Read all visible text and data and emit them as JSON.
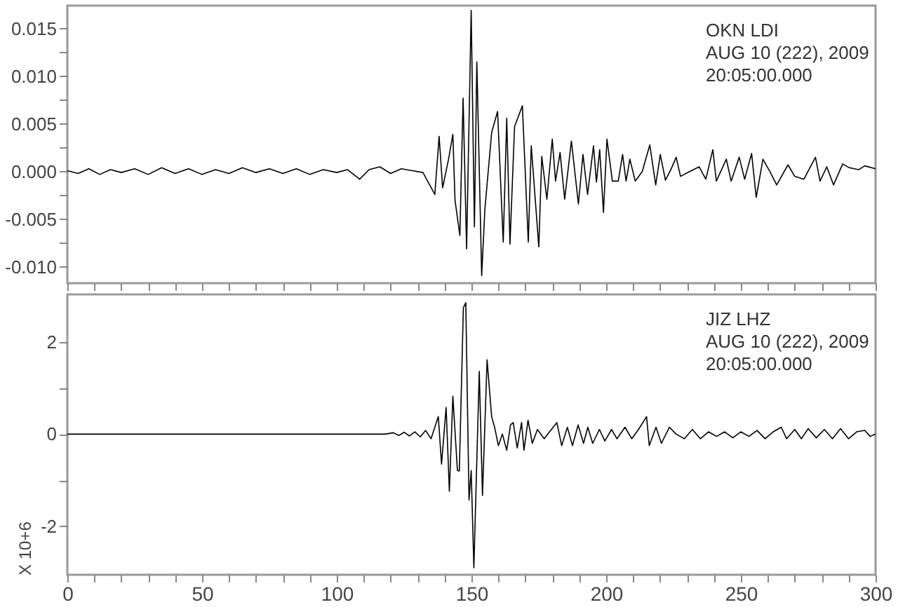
{
  "chart_data": [
    {
      "type": "line",
      "tick_labels": "y",
      "grid": false,
      "legend": false,
      "line_style": "solid",
      "marker": "none",
      "annotations": [
        "OKN LDI",
        "AUG 10 (222), 2009",
        "20:05:00.000"
      ],
      "xlim": [
        0,
        300
      ],
      "xticks": [
        0,
        {
          "value": 10,
          "label": null
        },
        {
          "value": 20,
          "label": null
        },
        {
          "value": 30,
          "label": null
        },
        {
          "value": 40,
          "label": null
        },
        50,
        {
          "value": 60,
          "label": null
        },
        {
          "value": 70,
          "label": null
        },
        {
          "value": 80,
          "label": null
        },
        {
          "value": 90,
          "label": null
        },
        100,
        {
          "value": 110,
          "label": null
        },
        {
          "value": 120,
          "label": null
        },
        {
          "value": 130,
          "label": null
        },
        {
          "value": 140,
          "label": null
        },
        150,
        {
          "value": 160,
          "label": null
        },
        {
          "value": 170,
          "label": null
        },
        {
          "value": 180,
          "label": null
        },
        {
          "value": 190,
          "label": null
        },
        200,
        {
          "value": 210,
          "label": null
        },
        {
          "value": 220,
          "label": null
        },
        {
          "value": 230,
          "label": null
        },
        {
          "value": 240,
          "label": null
        },
        250,
        {
          "value": 260,
          "label": null
        },
        {
          "value": 270,
          "label": null
        },
        {
          "value": 280,
          "label": null
        },
        {
          "value": 290,
          "label": null
        },
        300
      ],
      "ylim": [
        -0.0117,
        0.0174
      ],
      "yticks": [
        {
          "value": -0.01,
          "label": "-0.010"
        },
        {
          "value": -0.0075,
          "label": null
        },
        {
          "value": -0.005,
          "label": "-0.005"
        },
        {
          "value": -0.0025,
          "label": null
        },
        {
          "value": 0,
          "label": "0.000"
        },
        {
          "value": 0.0025,
          "label": null
        },
        {
          "value": 0.005,
          "label": "0.005"
        },
        {
          "value": 0.0075,
          "label": null
        },
        {
          "value": 0.01,
          "label": "0.010"
        },
        {
          "value": 0.0125,
          "label": null
        },
        {
          "value": 0.015,
          "label": "0.015"
        }
      ],
      "x": [
        0,
        4,
        8,
        12,
        16,
        20,
        25,
        30,
        35,
        40,
        45,
        50,
        55,
        60,
        65,
        70,
        75,
        80,
        85,
        90,
        95,
        100,
        104,
        108.5,
        112,
        116,
        120,
        124,
        128,
        132,
        136.4,
        138,
        139.3,
        141.5,
        143.1,
        143.9,
        145.7,
        146.9,
        148.2,
        149.9,
        151.1,
        152,
        153.8,
        155,
        157.5,
        159.7,
        161.8,
        163.1,
        164.3,
        166,
        168.9,
        171.1,
        172.2,
        175,
        176.1,
        178,
        180,
        181.2,
        182.9,
        184.6,
        187.1,
        189.7,
        191.4,
        193.1,
        195.3,
        196.4,
        197.6,
        199,
        200.3,
        202.3,
        204.5,
        206.1,
        207.4,
        208.8,
        210.8,
        213.4,
        216.2,
        218.4,
        220.1,
        222,
        224,
        226,
        227.6,
        231,
        234.5,
        237,
        239.6,
        240.9,
        244.6,
        246.4,
        249.4,
        251.4,
        254,
        255.7,
        258.2,
        260.8,
        263.3,
        267.5,
        270,
        273.4,
        277.7,
        279.4,
        281.9,
        284.4,
        287.8,
        290.3,
        293.7,
        296,
        300
      ],
      "series": [
        {
          "color": "#000000",
          "values": [
            0.0001,
            -0.0002,
            0.0003,
            -0.0003,
            0.0002,
            -0.0001,
            0.0003,
            -0.0003,
            0.0004,
            -0.0002,
            0.0003,
            -0.0003,
            0.0002,
            -0.0002,
            0.0004,
            -0.0001,
            0.0003,
            -0.0002,
            0.0003,
            -0.0003,
            0.0002,
            -0.0001,
            0.0002,
            -0.0008,
            0.0002,
            0.0005,
            -0.0002,
            0.0003,
            0.0001,
            -0.0001,
            -0.0024,
            0.0037,
            -0.0017,
            0.0013,
            0.0039,
            -0.003,
            -0.0067,
            0.0077,
            -0.0081,
            0.0169,
            -0.0058,
            0.0115,
            -0.0109,
            -0.0039,
            0.0041,
            0.0063,
            -0.0074,
            0.0056,
            -0.0076,
            0.0047,
            0.0069,
            -0.0074,
            0.0027,
            -0.0079,
            0.0016,
            -0.0029,
            0.0034,
            -0.001,
            0.002,
            -0.0029,
            0.0032,
            -0.0034,
            0.0018,
            -0.0024,
            0.0027,
            -0.0011,
            0.0023,
            -0.0043,
            0.0034,
            -0.001,
            -0.001,
            0.0018,
            -0.001,
            0.0013,
            -0.001,
            0,
            0.0028,
            -0.0014,
            0.0018,
            -0.0009,
            0.0002,
            0.0015,
            -0.0005,
            0,
            0.0005,
            -0.0008,
            0.0023,
            -0.001,
            0.0013,
            -0.001,
            0.0015,
            -0.0008,
            0.0019,
            -0.0027,
            0.0013,
            0,
            -0.0014,
            0.0007,
            -0.0005,
            -0.0008,
            0.0015,
            -0.001,
            0.0005,
            -0.0014,
            0.0008,
            0.0004,
            0.0002,
            0.0006,
            0.0003
          ]
        }
      ]
    },
    {
      "type": "line",
      "grid": false,
      "legend": false,
      "line_style": "solid",
      "marker": "none",
      "ylabel": "X 10+6",
      "annotations": [
        "JIZ LHZ",
        "AUG 10 (222), 2009",
        "20:05:00.000"
      ],
      "xlim": [
        0,
        300
      ],
      "xticks": [
        0,
        {
          "value": 10,
          "label": null
        },
        {
          "value": 20,
          "label": null
        },
        {
          "value": 30,
          "label": null
        },
        {
          "value": 40,
          "label": null
        },
        50,
        {
          "value": 60,
          "label": null
        },
        {
          "value": 70,
          "label": null
        },
        {
          "value": 80,
          "label": null
        },
        {
          "value": 90,
          "label": null
        },
        100,
        {
          "value": 110,
          "label": null
        },
        {
          "value": 120,
          "label": null
        },
        {
          "value": 130,
          "label": null
        },
        {
          "value": 140,
          "label": null
        },
        150,
        {
          "value": 160,
          "label": null
        },
        {
          "value": 170,
          "label": null
        },
        {
          "value": 180,
          "label": null
        },
        {
          "value": 190,
          "label": null
        },
        200,
        {
          "value": 210,
          "label": null
        },
        {
          "value": 220,
          "label": null
        },
        {
          "value": 230,
          "label": null
        },
        {
          "value": 240,
          "label": null
        },
        250,
        {
          "value": 260,
          "label": null
        },
        {
          "value": 270,
          "label": null
        },
        {
          "value": 280,
          "label": null
        },
        {
          "value": 290,
          "label": null
        },
        300
      ],
      "ylim": [
        -3.05,
        3.03
      ],
      "yticks": [
        -2,
        {
          "value": -1,
          "label": null
        },
        0,
        {
          "value": 1,
          "label": null
        },
        2
      ],
      "x": [
        0,
        20,
        40,
        60,
        80,
        100,
        118,
        121,
        123,
        125,
        127,
        129,
        131,
        133,
        135,
        137.7,
        138.9,
        140.6,
        141.8,
        143.1,
        144.8,
        145.5,
        147,
        147.9,
        149.1,
        149.9,
        150.9,
        152.9,
        154.1,
        155.8,
        157.5,
        158.6,
        160,
        161.5,
        163.1,
        164.5,
        165.5,
        167,
        168.6,
        169.5,
        171,
        172.6,
        174.5,
        177,
        179,
        181.7,
        183.5,
        185.6,
        187.5,
        189.6,
        191.6,
        193.2,
        195,
        197.5,
        199.5,
        202,
        204,
        207,
        209.5,
        212,
        215,
        216,
        218.5,
        220.5,
        223.5,
        226,
        229,
        232,
        235,
        238,
        241,
        244,
        247,
        250,
        253,
        256,
        259,
        262,
        265,
        267,
        270,
        272.5,
        275,
        278,
        281,
        284,
        287,
        290,
        293,
        296,
        298,
        300
      ],
      "series": [
        {
          "color": "#000000",
          "values": [
            0,
            0,
            0,
            0,
            0,
            0,
            0,
            0.03,
            -0.03,
            0.04,
            -0.04,
            0.05,
            -0.06,
            0.08,
            -0.1,
            0.38,
            -0.65,
            0.58,
            -1.24,
            0.82,
            -0.79,
            -0.8,
            2.74,
            2.85,
            -1.43,
            -0.79,
            -2.9,
            1.36,
            -1.33,
            1.61,
            0.38,
            0.15,
            -0.25,
            0,
            -0.35,
            0.2,
            0.25,
            -0.3,
            0.25,
            -0.35,
            0.3,
            -0.2,
            0.1,
            -0.1,
            0.05,
            0.25,
            -0.25,
            0.15,
            -0.25,
            0.2,
            -0.2,
            0.15,
            -0.2,
            0.1,
            -0.15,
            0.1,
            -0.1,
            0.15,
            -0.1,
            0.1,
            0.38,
            -0.25,
            0.15,
            -0.2,
            0.15,
            0,
            -0.1,
            0.1,
            -0.1,
            0.05,
            -0.05,
            0.05,
            -0.08,
            0.05,
            -0.05,
            0.08,
            -0.1,
            0.05,
            0.15,
            -0.1,
            0.1,
            -0.1,
            0.12,
            -0.08,
            0.1,
            -0.1,
            0.12,
            -0.1,
            0.05,
            0.08,
            -0.05,
            0
          ]
        }
      ]
    }
  ]
}
